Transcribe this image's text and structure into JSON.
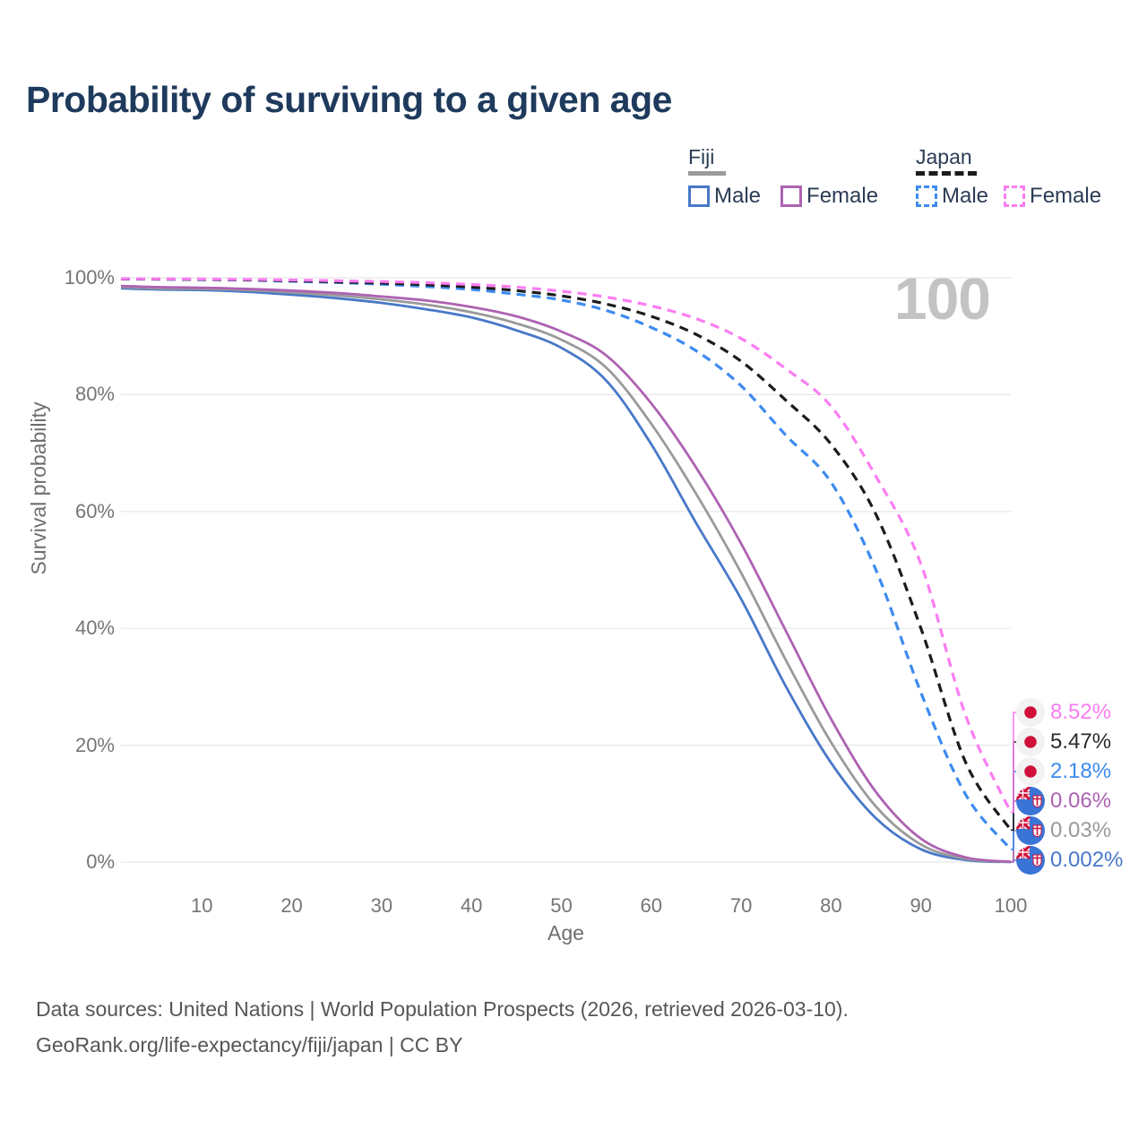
{
  "title": "Probability of surviving to a given age",
  "age_indicator": "100",
  "legend": {
    "groups": [
      {
        "name": "Fiji",
        "line_style": "solid",
        "group_line_color": "#9a9a9a",
        "items": [
          {
            "label": "Male",
            "color": "#4878c8"
          },
          {
            "label": "Female",
            "color": "#ad62b2"
          }
        ]
      },
      {
        "name": "Japan",
        "line_style": "dashed",
        "group_line_color": "#1c1c1c",
        "items": [
          {
            "label": "Male",
            "color": "#3d8bf0"
          },
          {
            "label": "Female",
            "color": "#fb7df2"
          }
        ]
      }
    ]
  },
  "chart_data": {
    "type": "line",
    "title": "Probability of surviving to a given age",
    "xlabel": "Age",
    "ylabel": "Survival probability",
    "xlim": [
      1,
      100
    ],
    "ylim": [
      0,
      100
    ],
    "grid": "horizontal-only",
    "x_ticks": [
      10,
      20,
      30,
      40,
      50,
      60,
      70,
      80,
      90,
      100
    ],
    "y_ticks": [
      {
        "value": 100,
        "label": "100%"
      },
      {
        "value": 80,
        "label": "80%"
      },
      {
        "value": 60,
        "label": "60%"
      },
      {
        "value": 40,
        "label": "40%"
      },
      {
        "value": 20,
        "label": "20%"
      },
      {
        "value": 0,
        "label": "0%"
      }
    ],
    "ages": [
      1,
      5,
      10,
      15,
      20,
      25,
      30,
      35,
      40,
      45,
      50,
      55,
      60,
      65,
      70,
      75,
      80,
      85,
      90,
      95,
      100
    ],
    "series": [
      {
        "key": "fiji-male",
        "name": "Fiji Male",
        "country": "Fiji",
        "sex": "Male",
        "color": "#4878c8",
        "dash": "solid",
        "flag": "fiji",
        "values": [
          98.2,
          98.0,
          97.9,
          97.6,
          97.1,
          96.5,
          95.7,
          94.6,
          93.2,
          91.0,
          88.0,
          82.4,
          71.5,
          58.0,
          45.0,
          30.0,
          17.0,
          7.5,
          2.2,
          0.35,
          0.002
        ],
        "end_value": 0.002,
        "end_label": "0.002%"
      },
      {
        "key": "fiji-both",
        "name": "Fiji Both sexes",
        "country": "Fiji",
        "sex": "Both",
        "color": "#9a9a9a",
        "dash": "solid",
        "flag": "fiji",
        "values": [
          98.4,
          98.2,
          98.1,
          97.9,
          97.5,
          97.0,
          96.3,
          95.4,
          94.1,
          92.2,
          89.4,
          84.6,
          75.0,
          63.0,
          49.5,
          34.5,
          20.5,
          9.5,
          3.0,
          0.55,
          0.03
        ],
        "end_value": 0.03,
        "end_label": "0.03%"
      },
      {
        "key": "fiji-female",
        "name": "Fiji Female",
        "country": "Fiji",
        "sex": "Female",
        "color": "#ad62b2",
        "dash": "solid",
        "flag": "fiji",
        "values": [
          98.6,
          98.4,
          98.3,
          98.1,
          97.8,
          97.4,
          96.8,
          96.1,
          95.0,
          93.4,
          90.8,
          86.7,
          78.5,
          67.5,
          54.5,
          39.5,
          24.5,
          12.0,
          4.0,
          0.8,
          0.06
        ],
        "end_value": 0.06,
        "end_label": "0.06%"
      },
      {
        "key": "japan-male",
        "name": "Japan Male",
        "country": "Japan",
        "sex": "Male",
        "color": "#3d8bf0",
        "dash": "dashed",
        "flag": "japan",
        "values": [
          99.8,
          99.75,
          99.7,
          99.6,
          99.4,
          99.2,
          98.9,
          98.5,
          98.0,
          97.2,
          96.2,
          94.4,
          91.5,
          87.5,
          81.5,
          73.0,
          65.0,
          50.0,
          29.0,
          11.5,
          2.18
        ],
        "end_value": 2.18,
        "end_label": "2.18%"
      },
      {
        "key": "japan-both",
        "name": "Japan Both sexes",
        "country": "Japan",
        "sex": "Both",
        "color": "#1c1c1c",
        "dash": "dashed",
        "flag": "japan",
        "values": [
          99.8,
          99.78,
          99.72,
          99.65,
          99.5,
          99.3,
          99.1,
          98.8,
          98.4,
          97.8,
          96.9,
          95.5,
          93.4,
          90.3,
          85.7,
          79.0,
          71.5,
          59.5,
          40.0,
          17.0,
          5.47
        ],
        "end_value": 5.47,
        "end_label": "5.47%"
      },
      {
        "key": "japan-female",
        "name": "Japan Female",
        "country": "Japan",
        "sex": "Female",
        "color": "#fb7df2",
        "dash": "dashed",
        "flag": "japan",
        "values": [
          99.85,
          99.82,
          99.78,
          99.72,
          99.62,
          99.5,
          99.35,
          99.15,
          98.85,
          98.4,
          97.7,
          96.7,
          95.2,
          93.0,
          89.6,
          84.4,
          78.0,
          66.0,
          51.0,
          25.0,
          8.52
        ],
        "end_value": 8.52,
        "end_label": "8.52%"
      }
    ],
    "colors": {
      "grid": "#e7e7e7",
      "tick_text": "#757575",
      "axis_label_text": "#6e6e6e",
      "title_text": "#1e3a5c",
      "age_indicator_text": "#c3c3c3",
      "japan_flag_red": "#d0103a",
      "fiji_flag_blue": "#3a74d6"
    }
  },
  "footer": {
    "line1": "Data sources: United Nations | World Population Prospects (2026, retrieved 2026-03-10).",
    "line2": "GeoRank.org/life-expectancy/fiji/japan | CC BY"
  }
}
